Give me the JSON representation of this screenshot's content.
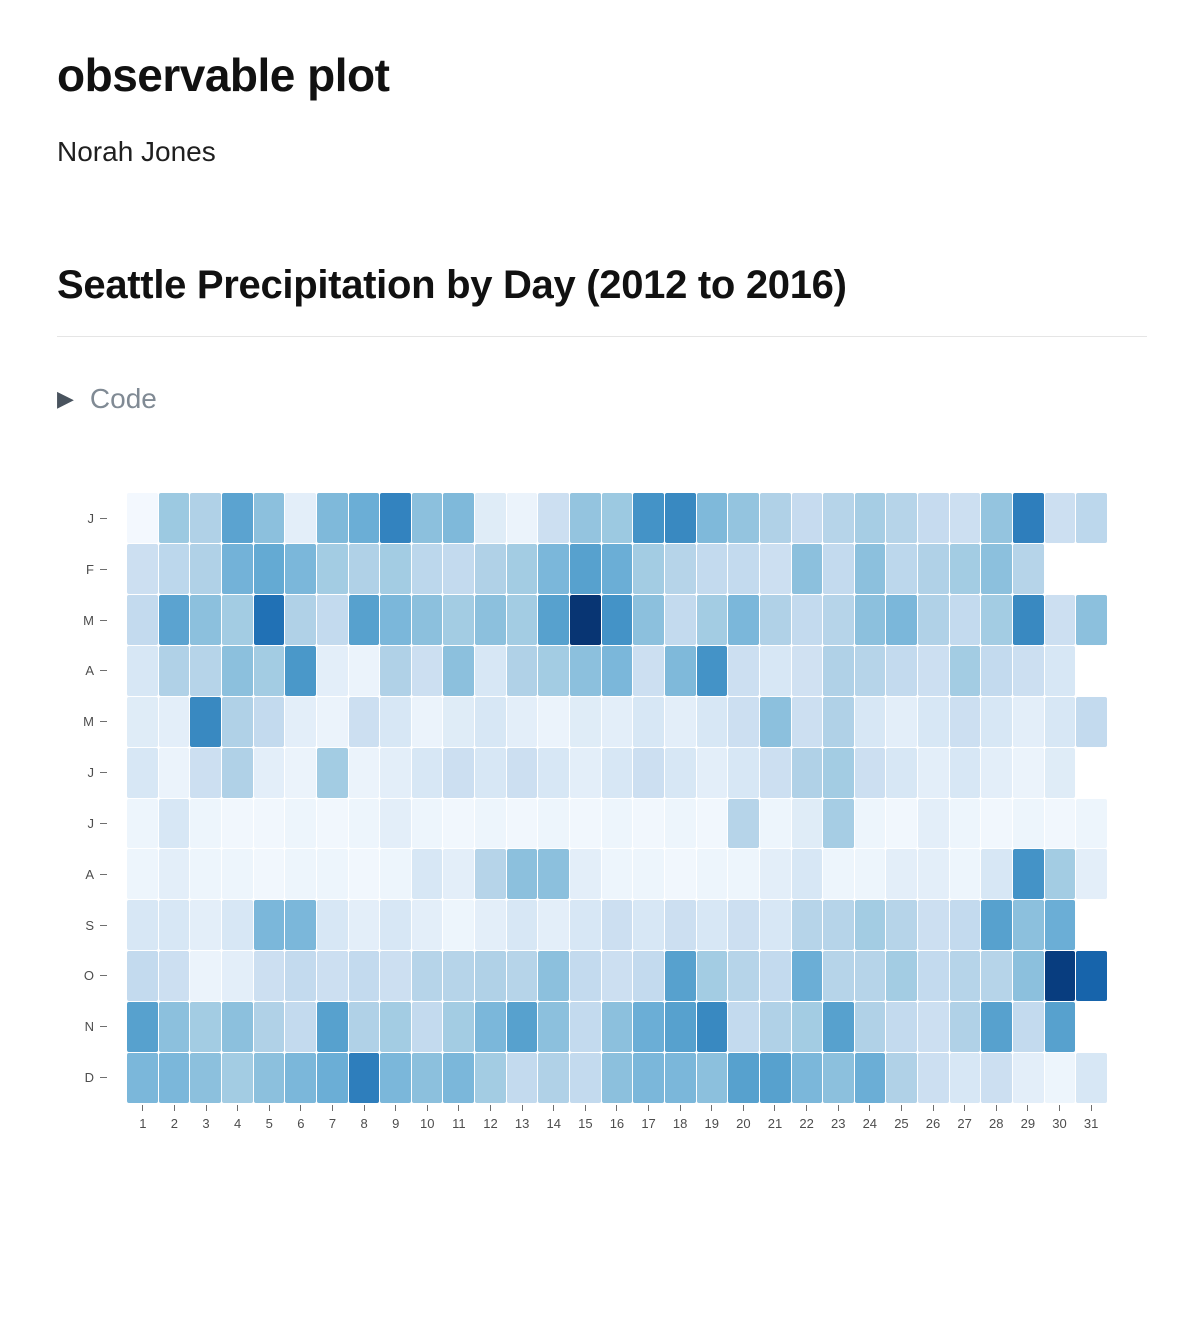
{
  "header": {
    "title": "observable plot",
    "author": "Norah Jones"
  },
  "section": {
    "title": "Seattle Precipitation by Day (2012 to 2016)",
    "code_toggle_label": "Code",
    "disclosure_icon": "▶",
    "disclosure_state": "collapsed"
  },
  "chart_data": {
    "type": "heatmap",
    "title": "Seattle Precipitation by Day (2012 to 2016)",
    "x_labels": [
      "1",
      "2",
      "3",
      "4",
      "5",
      "6",
      "7",
      "8",
      "9",
      "10",
      "11",
      "12",
      "13",
      "14",
      "15",
      "16",
      "17",
      "18",
      "19",
      "20",
      "21",
      "22",
      "23",
      "24",
      "25",
      "26",
      "27",
      "28",
      "29",
      "30",
      "31"
    ],
    "y_labels": [
      "J",
      "F",
      "M",
      "A",
      "M",
      "J",
      "J",
      "A",
      "S",
      "O",
      "N",
      "D"
    ],
    "legend": "none",
    "grid": "off",
    "color_scale": {
      "name": "Blues",
      "domain": [
        0,
        1
      ],
      "anchors": [
        "#f7fbff",
        "#deebf7",
        "#c6dbef",
        "#9ecae1",
        "#6baed6",
        "#4292c6",
        "#2171b5",
        "#08519c",
        "#08306b"
      ]
    },
    "series": [
      {
        "month": "January",
        "label": "J",
        "values": [
          0.02,
          0.38,
          0.32,
          0.55,
          0.42,
          0.1,
          0.45,
          0.5,
          0.68,
          0.42,
          0.45,
          0.12,
          0.06,
          0.22,
          0.4,
          0.38,
          0.62,
          0.66,
          0.45,
          0.4,
          0.32,
          0.25,
          0.3,
          0.35,
          0.3,
          0.25,
          0.22,
          0.4,
          0.7,
          0.22,
          0.28
        ]
      },
      {
        "month": "February",
        "label": "F",
        "values": [
          0.22,
          0.28,
          0.32,
          0.48,
          0.52,
          0.46,
          0.36,
          0.32,
          0.36,
          0.28,
          0.26,
          0.32,
          0.36,
          0.46,
          0.56,
          0.5,
          0.36,
          0.3,
          0.26,
          0.26,
          0.22,
          0.42,
          0.26,
          0.42,
          0.28,
          0.32,
          0.36,
          0.42,
          0.3,
          null,
          null
        ]
      },
      {
        "month": "March",
        "label": "M",
        "values": [
          0.26,
          0.55,
          0.42,
          0.36,
          0.75,
          0.32,
          0.26,
          0.56,
          0.46,
          0.42,
          0.36,
          0.42,
          0.36,
          0.56,
          0.98,
          0.62,
          0.42,
          0.26,
          0.36,
          0.46,
          0.32,
          0.26,
          0.3,
          0.42,
          0.46,
          0.32,
          0.26,
          0.36,
          0.66,
          0.22,
          0.42
        ]
      },
      {
        "month": "April",
        "label": "A",
        "values": [
          0.16,
          0.32,
          0.3,
          0.42,
          0.36,
          0.6,
          0.1,
          0.06,
          0.32,
          0.22,
          0.42,
          0.16,
          0.32,
          0.36,
          0.42,
          0.46,
          0.22,
          0.45,
          0.62,
          0.22,
          0.16,
          0.2,
          0.32,
          0.3,
          0.26,
          0.22,
          0.36,
          0.26,
          0.22,
          0.16,
          null
        ]
      },
      {
        "month": "May",
        "label": "M",
        "values": [
          0.12,
          0.1,
          0.66,
          0.32,
          0.26,
          0.1,
          0.06,
          0.22,
          0.16,
          0.06,
          0.12,
          0.16,
          0.1,
          0.06,
          0.12,
          0.1,
          0.16,
          0.1,
          0.16,
          0.22,
          0.42,
          0.22,
          0.32,
          0.16,
          0.1,
          0.16,
          0.22,
          0.16,
          0.1,
          0.16,
          0.26
        ]
      },
      {
        "month": "June",
        "label": "J",
        "values": [
          0.16,
          0.06,
          0.22,
          0.32,
          0.1,
          0.06,
          0.36,
          0.06,
          0.1,
          0.16,
          0.22,
          0.16,
          0.22,
          0.16,
          0.1,
          0.16,
          0.22,
          0.16,
          0.1,
          0.16,
          0.22,
          0.32,
          0.36,
          0.22,
          0.16,
          0.1,
          0.16,
          0.1,
          0.06,
          0.12,
          null
        ]
      },
      {
        "month": "July",
        "label": "J",
        "values": [
          0.05,
          0.16,
          0.05,
          0.03,
          0.03,
          0.05,
          0.03,
          0.05,
          0.1,
          0.05,
          0.03,
          0.05,
          0.03,
          0.05,
          0.03,
          0.05,
          0.03,
          0.05,
          0.03,
          0.3,
          0.05,
          0.12,
          0.35,
          0.05,
          0.03,
          0.1,
          0.05,
          0.03,
          0.05,
          0.03,
          0.05
        ]
      },
      {
        "month": "August",
        "label": "A",
        "values": [
          0.05,
          0.1,
          0.05,
          0.05,
          0.03,
          0.05,
          0.05,
          0.03,
          0.05,
          0.16,
          0.1,
          0.3,
          0.42,
          0.42,
          0.1,
          0.05,
          0.05,
          0.03,
          0.05,
          0.05,
          0.1,
          0.16,
          0.05,
          0.05,
          0.1,
          0.1,
          0.05,
          0.16,
          0.62,
          0.36,
          0.1
        ]
      },
      {
        "month": "September",
        "label": "S",
        "values": [
          0.16,
          0.16,
          0.1,
          0.16,
          0.46,
          0.46,
          0.16,
          0.1,
          0.16,
          0.1,
          0.05,
          0.1,
          0.16,
          0.1,
          0.16,
          0.22,
          0.16,
          0.22,
          0.16,
          0.22,
          0.16,
          0.3,
          0.3,
          0.36,
          0.3,
          0.22,
          0.26,
          0.56,
          0.42,
          0.5,
          null
        ]
      },
      {
        "month": "October",
        "label": "O",
        "values": [
          0.26,
          0.22,
          0.06,
          0.1,
          0.22,
          0.26,
          0.22,
          0.26,
          0.22,
          0.3,
          0.3,
          0.32,
          0.3,
          0.42,
          0.26,
          0.22,
          0.26,
          0.56,
          0.36,
          0.3,
          0.26,
          0.5,
          0.3,
          0.3,
          0.36,
          0.26,
          0.3,
          0.3,
          0.42,
          0.95,
          0.8
        ]
      },
      {
        "month": "November",
        "label": "N",
        "values": [
          0.56,
          0.42,
          0.36,
          0.42,
          0.32,
          0.26,
          0.56,
          0.32,
          0.36,
          0.26,
          0.36,
          0.46,
          0.56,
          0.42,
          0.26,
          0.42,
          0.5,
          0.56,
          0.66,
          0.26,
          0.32,
          0.36,
          0.56,
          0.32,
          0.26,
          0.22,
          0.32,
          0.56,
          0.26,
          0.56,
          null
        ]
      },
      {
        "month": "December",
        "label": "D",
        "values": [
          0.46,
          0.46,
          0.42,
          0.36,
          0.42,
          0.46,
          0.5,
          0.7,
          0.46,
          0.42,
          0.46,
          0.36,
          0.26,
          0.32,
          0.26,
          0.42,
          0.46,
          0.46,
          0.42,
          0.56,
          0.56,
          0.46,
          0.42,
          0.5,
          0.32,
          0.22,
          0.16,
          0.22,
          0.1,
          0.05,
          0.16
        ]
      }
    ]
  }
}
